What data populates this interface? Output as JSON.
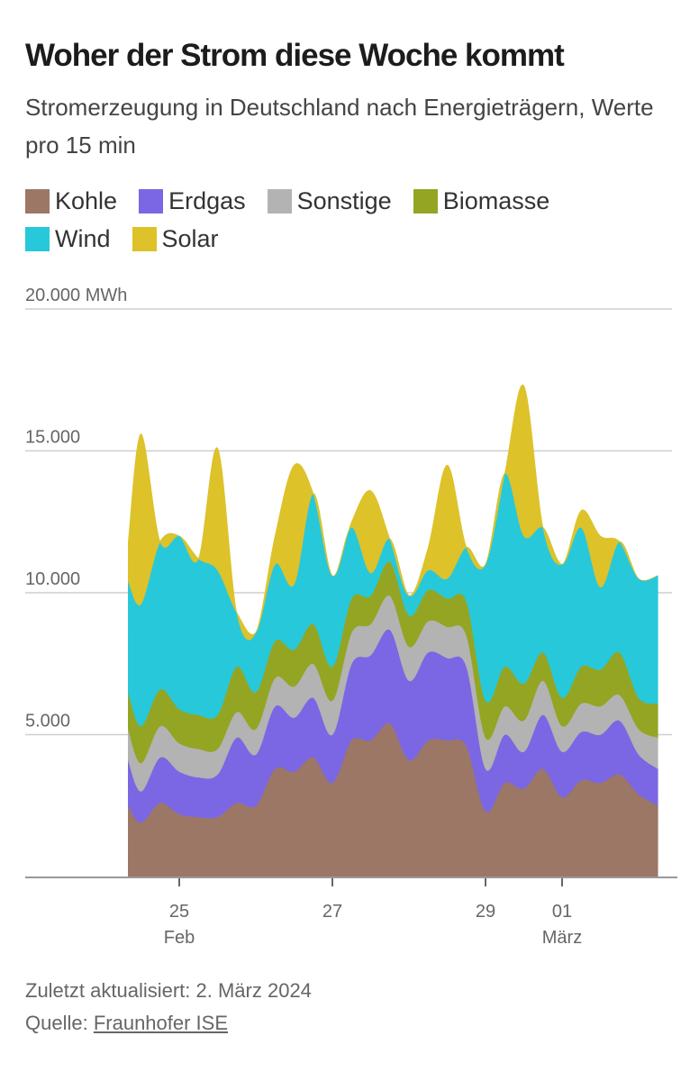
{
  "header": {
    "title": "Woher der Strom diese Woche kommt",
    "subtitle": "Stromerzeugung in Deutschland nach Energieträgern, Werte pro 15 min"
  },
  "footer": {
    "updated": "Zuletzt aktualisiert: 2. März 2024",
    "source_label": "Quelle: ",
    "source_link": "Fraunhofer ISE"
  },
  "chart_data": {
    "type": "area",
    "stacked": true,
    "title": "Woher der Strom diese Woche kommt",
    "ylabel": "MWh",
    "ylim": [
      0,
      20000
    ],
    "yticks": [
      {
        "value": 5000,
        "label": "5.000"
      },
      {
        "value": 10000,
        "label": "10.000"
      },
      {
        "value": 15000,
        "label": "15.000"
      },
      {
        "value": 20000,
        "label": "20.000 MWh"
      }
    ],
    "xticks": [
      {
        "time": "2024-02-25T00:00",
        "label": "25",
        "sublabel": "Feb"
      },
      {
        "time": "2024-02-27T00:00",
        "label": "27",
        "sublabel": ""
      },
      {
        "time": "2024-02-29T00:00",
        "label": "29",
        "sublabel": ""
      },
      {
        "time": "2024-03-01T00:00",
        "label": "01",
        "sublabel": "März"
      }
    ],
    "grid": true,
    "legend_position": "top",
    "x": [
      "2024-02-24T08:00",
      "2024-02-24T12:00",
      "2024-02-24T18:00",
      "2024-02-25T00:00",
      "2024-02-25T06:00",
      "2024-02-25T12:00",
      "2024-02-25T18:00",
      "2024-02-26T00:00",
      "2024-02-26T06:00",
      "2024-02-26T12:00",
      "2024-02-26T18:00",
      "2024-02-27T00:00",
      "2024-02-27T06:00",
      "2024-02-27T12:00",
      "2024-02-27T18:00",
      "2024-02-28T00:00",
      "2024-02-28T06:00",
      "2024-02-28T12:00",
      "2024-02-28T18:00",
      "2024-02-29T00:00",
      "2024-02-29T06:00",
      "2024-02-29T12:00",
      "2024-02-29T18:00",
      "2024-03-01T00:00",
      "2024-03-01T06:00",
      "2024-03-01T12:00",
      "2024-03-01T18:00",
      "2024-03-02T00:00",
      "2024-03-02T06:00"
    ],
    "series": [
      {
        "name": "Kohle",
        "color": "#9c7766",
        "values": [
          2500,
          1900,
          2600,
          2200,
          2100,
          2100,
          2600,
          2500,
          3800,
          3700,
          4200,
          3300,
          4800,
          4800,
          5400,
          4100,
          4800,
          4800,
          4600,
          2300,
          3300,
          3100,
          3800,
          2800,
          3400,
          3300,
          3600,
          2900,
          2500
        ]
      },
      {
        "name": "Erdgas",
        "color": "#7b67e3",
        "values": [
          1600,
          1100,
          1600,
          1500,
          1400,
          1500,
          2300,
          1800,
          2200,
          1900,
          2100,
          1700,
          2700,
          3000,
          3300,
          2800,
          3100,
          2900,
          2800,
          1500,
          1700,
          1300,
          1900,
          1600,
          1700,
          1700,
          1900,
          1400,
          1300
        ]
      },
      {
        "name": "Sonstige",
        "color": "#b3b3b3",
        "values": [
          1100,
          1000,
          1100,
          1000,
          1000,
          900,
          900,
          900,
          1000,
          1100,
          1200,
          1200,
          1100,
          1100,
          1200,
          1200,
          1100,
          1100,
          1100,
          1100,
          1000,
          1100,
          1200,
          900,
          1000,
          1000,
          900,
          900,
          1100
        ]
      },
      {
        "name": "Biomasse",
        "color": "#94a523",
        "values": [
          1300,
          1300,
          1300,
          1200,
          1200,
          1200,
          1600,
          1300,
          1300,
          1300,
          1400,
          1200,
          1200,
          1000,
          1200,
          1100,
          1100,
          1000,
          1200,
          1300,
          1400,
          1300,
          1000,
          1000,
          1300,
          1300,
          1500,
          1100,
          1200
        ]
      },
      {
        "name": "Wind",
        "color": "#27c8da",
        "values": [
          3900,
          4300,
          5200,
          6100,
          5500,
          5100,
          1900,
          2100,
          2700,
          2300,
          4600,
          3200,
          2500,
          800,
          800,
          700,
          700,
          700,
          1900,
          4800,
          6800,
          5200,
          4400,
          4700,
          4900,
          2900,
          3900,
          4200,
          4500
        ]
      },
      {
        "name": "Solar",
        "color": "#ddc22a",
        "values": [
          1400,
          6000,
          0,
          0,
          0,
          4300,
          0,
          0,
          1000,
          4200,
          0,
          0,
          200,
          2900,
          0,
          0,
          800,
          4000,
          0,
          0,
          0,
          5300,
          0,
          0,
          600,
          1800,
          0,
          0,
          0
        ]
      }
    ]
  }
}
